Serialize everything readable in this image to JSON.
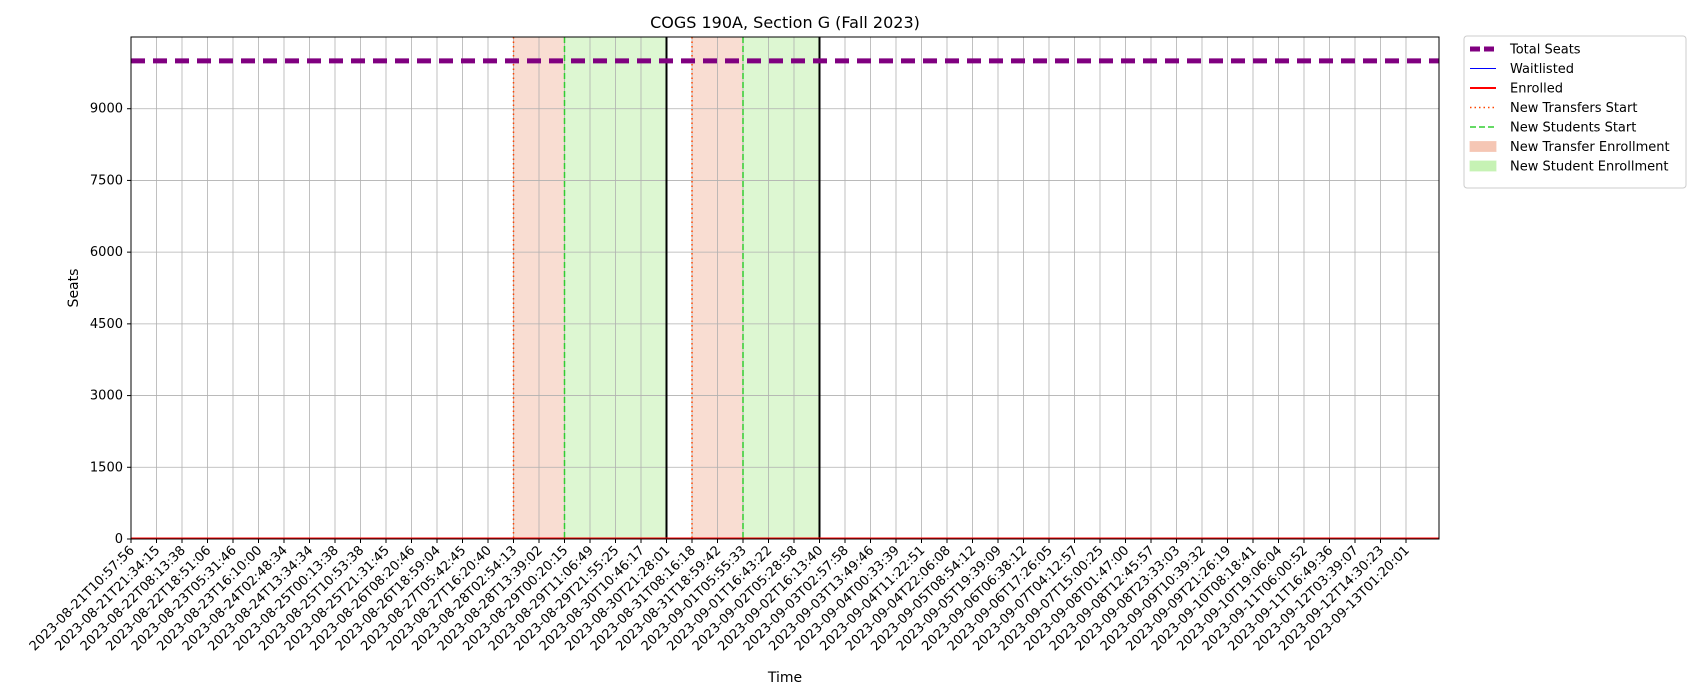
{
  "chart_data": {
    "type": "line",
    "title": "COGS 190A, Section G (Fall 2023)",
    "xlabel": "Time",
    "ylabel": "Seats",
    "ylim": [
      0,
      10500
    ],
    "yticks": [
      0,
      1500,
      3000,
      4500,
      6000,
      7500,
      9000
    ],
    "grid": true,
    "legend_position": "outside-top-right",
    "x": [
      "2023-08-21T10:57:56",
      "2023-08-21T21:34:15",
      "2023-08-22T08:13:38",
      "2023-08-22T18:51:06",
      "2023-08-23T05:31:46",
      "2023-08-23T16:10:00",
      "2023-08-24T02:48:34",
      "2023-08-24T13:34:34",
      "2023-08-25T00:13:38",
      "2023-08-25T10:53:38",
      "2023-08-25T21:31:45",
      "2023-08-26T08:20:46",
      "2023-08-26T18:59:04",
      "2023-08-27T05:42:45",
      "2023-08-27T16:20:40",
      "2023-08-28T02:54:13",
      "2023-08-28T13:39:02",
      "2023-08-29T00:20:15",
      "2023-08-29T11:06:49",
      "2023-08-29T21:55:25",
      "2023-08-30T10:46:17",
      "2023-08-30T21:28:01",
      "2023-08-31T08:16:18",
      "2023-08-31T18:59:42",
      "2023-09-01T05:55:33",
      "2023-09-01T16:43:22",
      "2023-09-02T05:28:58",
      "2023-09-02T16:13:40",
      "2023-09-03T02:57:58",
      "2023-09-03T13:49:46",
      "2023-09-04T00:33:39",
      "2023-09-04T11:22:51",
      "2023-09-04T22:06:08",
      "2023-09-05T08:54:12",
      "2023-09-05T19:39:09",
      "2023-09-06T06:38:12",
      "2023-09-06T17:26:05",
      "2023-09-07T04:12:57",
      "2023-09-07T15:00:25",
      "2023-09-08T01:47:00",
      "2023-09-08T12:45:57",
      "2023-09-08T23:33:03",
      "2023-09-09T10:39:32",
      "2023-09-09T21:26:19",
      "2023-09-10T08:18:41",
      "2023-09-10T19:06:04",
      "2023-09-11T06:00:52",
      "2023-09-11T16:49:36",
      "2023-09-12T03:39:07",
      "2023-09-12T14:30:23",
      "2023-09-13T01:20:01"
    ],
    "series": [
      {
        "name": "Total Seats",
        "color": "#800080",
        "style": "dashed-thick",
        "constant": 10000
      },
      {
        "name": "Waitlisted",
        "color": "#0000ff",
        "style": "solid-thin",
        "constant": 0
      },
      {
        "name": "Enrolled",
        "color": "#ff0000",
        "style": "solid",
        "constant": 0
      },
      {
        "name": "New Transfers Start",
        "color": "#ff4500",
        "style": "dotted"
      },
      {
        "name": "New Students Start",
        "color": "#32cd32",
        "style": "dashed"
      },
      {
        "name": "New Transfer Enrollment",
        "color": "#f5c6b4",
        "style": "span"
      },
      {
        "name": "New Student Enrollment",
        "color": "#c6f2b4",
        "style": "span"
      }
    ],
    "transfer_periods": [
      {
        "start": "2023-08-28T02:54:13",
        "end": "2023-08-29T00:20:15"
      },
      {
        "start": "2023-08-31T08:16:18",
        "end": "2023-09-01T05:55:33"
      }
    ],
    "student_periods": [
      {
        "start": "2023-08-29T00:20:15",
        "end": "2023-08-30T21:28:01"
      },
      {
        "start": "2023-09-01T05:55:33",
        "end": "2023-09-02T16:13:40"
      }
    ],
    "period_ends": [
      "2023-08-30T21:28:01",
      "2023-09-02T16:13:40"
    ]
  }
}
